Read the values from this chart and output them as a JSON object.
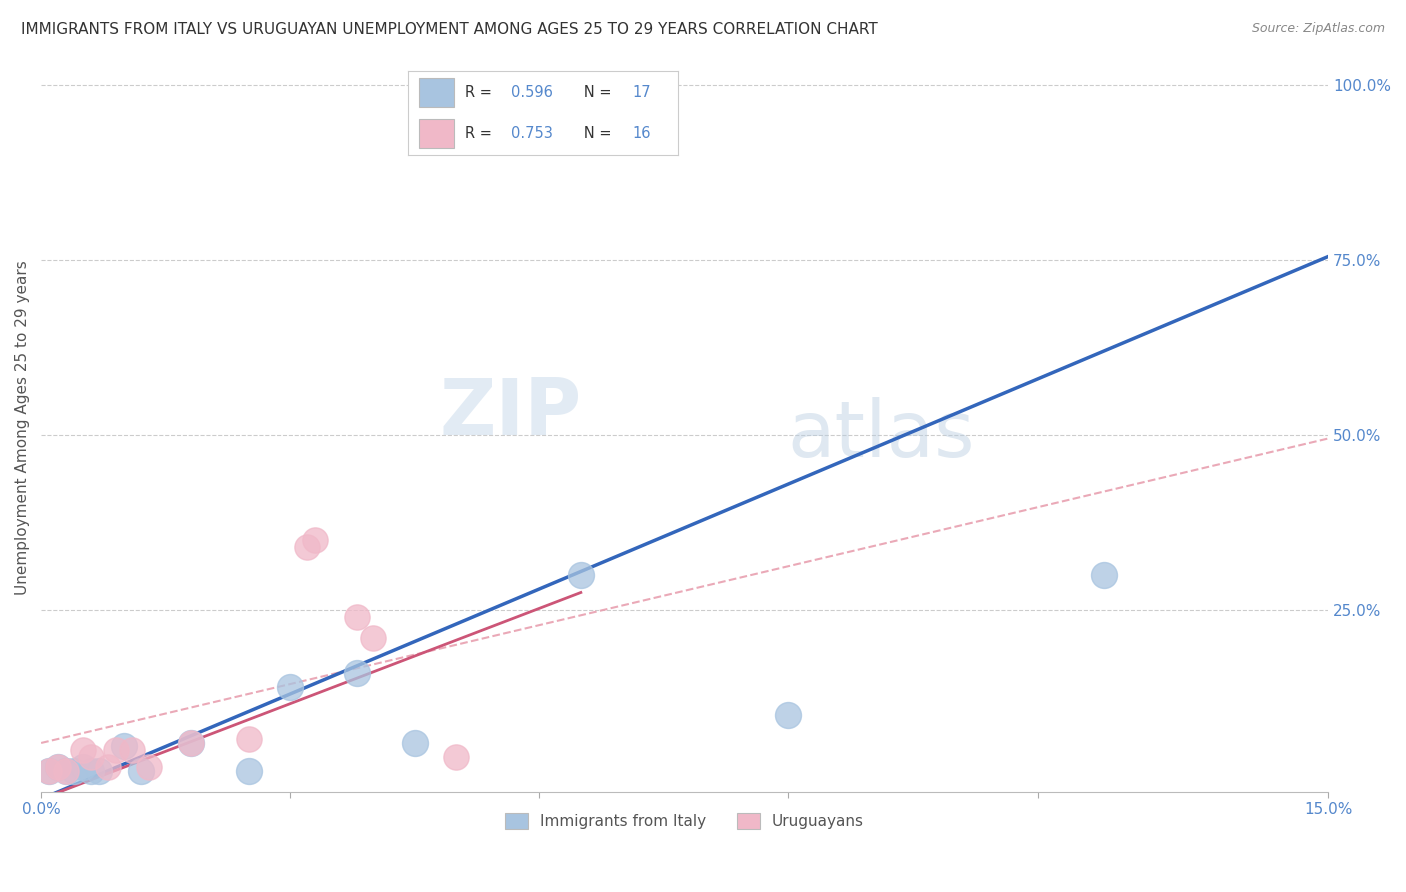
{
  "title": "IMMIGRANTS FROM ITALY VS URUGUAYAN UNEMPLOYMENT AMONG AGES 25 TO 29 YEARS CORRELATION CHART",
  "source": "Source: ZipAtlas.com",
  "ylabel": "Unemployment Among Ages 25 to 29 years",
  "legend1_label": "R = 0.596   N = 17",
  "legend2_label": "R = 0.753   N = 16",
  "legend_bottom": [
    "Immigrants from Italy",
    "Uruguayans"
  ],
  "watermark_zip": "ZIP",
  "watermark_atlas": "atlas",
  "blue_scatter": [
    [
      0.001,
      0.02
    ],
    [
      0.002,
      0.025
    ],
    [
      0.003,
      0.02
    ],
    [
      0.004,
      0.02
    ],
    [
      0.005,
      0.025
    ],
    [
      0.006,
      0.02
    ],
    [
      0.007,
      0.02
    ],
    [
      0.01,
      0.055
    ],
    [
      0.012,
      0.02
    ],
    [
      0.018,
      0.06
    ],
    [
      0.025,
      0.02
    ],
    [
      0.03,
      0.14
    ],
    [
      0.038,
      0.16
    ],
    [
      0.045,
      0.06
    ],
    [
      0.065,
      0.3
    ],
    [
      0.09,
      0.1
    ],
    [
      0.128,
      0.3
    ]
  ],
  "pink_scatter": [
    [
      0.001,
      0.02
    ],
    [
      0.002,
      0.025
    ],
    [
      0.003,
      0.02
    ],
    [
      0.005,
      0.05
    ],
    [
      0.006,
      0.04
    ],
    [
      0.008,
      0.025
    ],
    [
      0.009,
      0.05
    ],
    [
      0.011,
      0.05
    ],
    [
      0.013,
      0.025
    ],
    [
      0.018,
      0.06
    ],
    [
      0.025,
      0.065
    ],
    [
      0.032,
      0.34
    ],
    [
      0.033,
      0.35
    ],
    [
      0.038,
      0.24
    ],
    [
      0.04,
      0.21
    ],
    [
      0.05,
      0.04
    ]
  ],
  "xlim": [
    0,
    0.155
  ],
  "ylim": [
    -0.01,
    1.03
  ],
  "blue_color": "#a8c4e0",
  "pink_color": "#f0b8c8",
  "blue_line_color": "#3366bb",
  "pink_line_color": "#cc5577",
  "pink_dash_color": "#e8a0b0",
  "grid_color": "#cccccc",
  "title_color": "#333333",
  "tick_color": "#5588cc"
}
